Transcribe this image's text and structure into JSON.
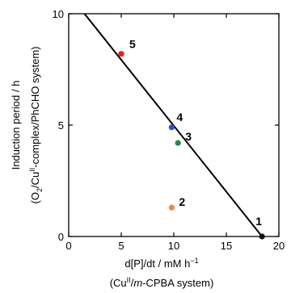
{
  "chart_data": {
    "type": "scatter",
    "xlabel_line1": "d[P]/dt / mM h",
    "xlabel_line1_sup": "−1",
    "xlabel_line2": {
      "open": "(Cu",
      "sup": "II",
      "mid": "/",
      "italic": "m",
      "close": "-CPBA system)"
    },
    "ylabel_line1": "Induction period / h",
    "ylabel_line2": {
      "open": "(O",
      "sub": "2",
      "mid": "/Cu",
      "sup": "II",
      "close": "-complex/PhCHO system)"
    },
    "xlim": [
      0,
      20
    ],
    "ylim": [
      0,
      10
    ],
    "xticks": [
      0,
      5,
      10,
      15,
      20
    ],
    "yticks": [
      0,
      5,
      10
    ],
    "xtick_labels": [
      "0",
      "5",
      "10",
      "15",
      "20"
    ],
    "ytick_labels": [
      "0",
      "5",
      "10"
    ],
    "points": [
      {
        "label": "1",
        "x": 18.4,
        "y": 0.0,
        "color": "#111111"
      },
      {
        "label": "2",
        "x": 9.8,
        "y": 1.3,
        "color": "#f0883a"
      },
      {
        "label": "3",
        "x": 10.4,
        "y": 4.2,
        "color": "#1e8c4a"
      },
      {
        "label": "4",
        "x": 9.8,
        "y": 4.9,
        "color": "#2e4fd8"
      },
      {
        "label": "5",
        "x": 5.0,
        "y": 8.2,
        "color": "#e32020"
      }
    ],
    "fit_line": {
      "x1": 1.5,
      "y1": 10.0,
      "x2": 18.4,
      "y2": 0.0
    }
  }
}
